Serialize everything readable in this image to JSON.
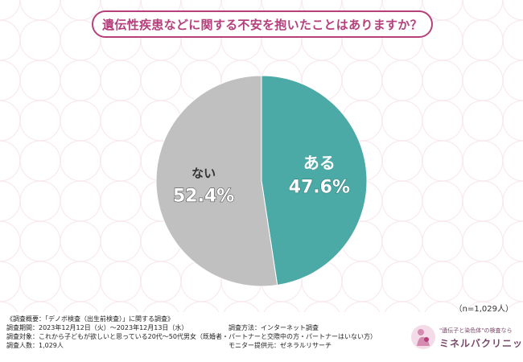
{
  "chart_data": {
    "type": "pie",
    "title": "遺伝性疾患などに関する不安を抱いたことはありますか？",
    "slices": [
      {
        "label": "ある",
        "value": 47.6,
        "display": "47.6%",
        "color": "#4ba9a6"
      },
      {
        "label": "ない",
        "value": 52.4,
        "display": "52.4%",
        "color": "#c0c0c0"
      }
    ],
    "sample_note": "（n=1,029人）"
  },
  "survey": {
    "overview": "《調査概要：「デノボ検査（出生前検査）」に関する調査》",
    "period": "調査期間：2023年12月12日（火）〜2023年12月13日（水）",
    "method": "調査方法：インターネット調査",
    "target": "調査対象：これから子どもが欲しいと思っている20代〜50代男女（既婚者・パートナーと交際中の方・パートナーはいない方）",
    "count": "調査人数：1,029人",
    "provider": "モニター提供元：ゼネラルリサーチ"
  },
  "logo": {
    "tagline": "\"遺伝子と染色体\"の検査なら",
    "name": "ミネルバクリニック"
  },
  "colors": {
    "accent": "#b5407c",
    "teal": "#4ba9a6",
    "gray": "#c0c0c0"
  }
}
